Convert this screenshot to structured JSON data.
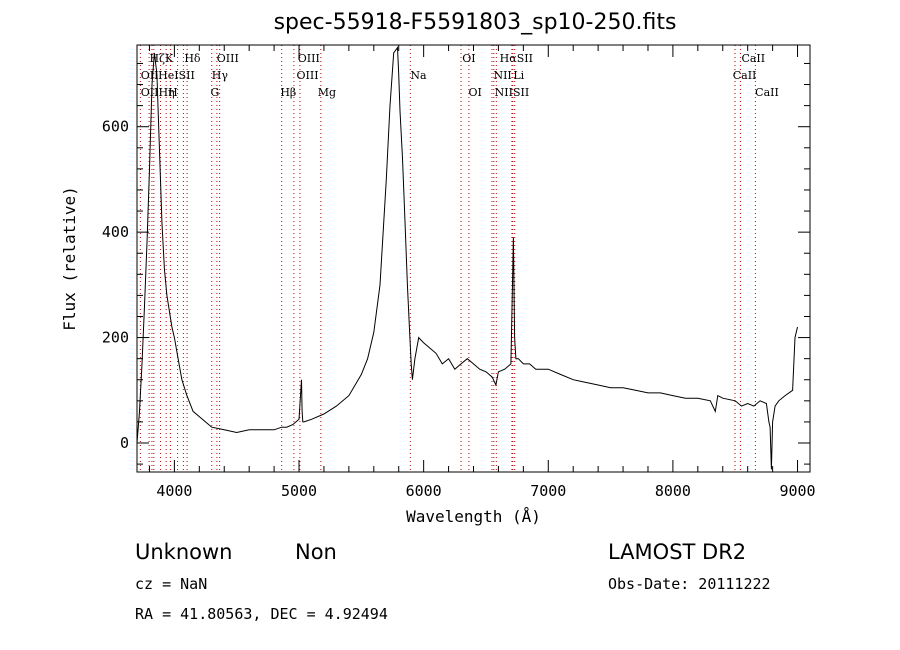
{
  "title": "spec-55918-F5591803_sp10-250.fits",
  "info": {
    "class": "Unknown",
    "subclass": "Non",
    "survey": "LAMOST DR2",
    "cz": "cz = NaN",
    "obs_date": "Obs-Date: 20111222",
    "coords": "RA =  41.80563, DEC =   4.92494"
  },
  "chart_data": {
    "type": "line",
    "xlabel": "Wavelength (Å)",
    "ylabel": "Flux (relative)",
    "xlim": [
      3700,
      9100
    ],
    "ylim": [
      -55,
      755
    ],
    "xticks": [
      4000,
      5000,
      6000,
      7000,
      8000,
      9000
    ],
    "yticks": [
      0,
      200,
      400,
      600
    ],
    "series": [
      {
        "x": [
          3700,
          3720,
          3740,
          3760,
          3780,
          3800,
          3820,
          3840,
          3860,
          3880,
          3900,
          3920,
          3940,
          3960,
          3980,
          4000,
          4030,
          4060,
          4100,
          4150,
          4200,
          4250,
          4300,
          4400,
          4500,
          4600,
          4700,
          4800,
          4860,
          4900,
          4950,
          5000,
          5020,
          5025,
          5030,
          5040,
          5100,
          5200,
          5300,
          5400,
          5500,
          5550,
          5600,
          5650,
          5700,
          5730,
          5760,
          5790,
          5800,
          5810,
          5830,
          5850,
          5870,
          5890,
          5900,
          5910,
          5930,
          5960,
          6000,
          6050,
          6100,
          6150,
          6200,
          6250,
          6300,
          6350,
          6400,
          6450,
          6500,
          6550,
          6580,
          6600,
          6650,
          6700,
          6720,
          6730,
          6740,
          6760,
          6800,
          6850,
          6900,
          7000,
          7100,
          7200,
          7300,
          7400,
          7500,
          7600,
          7700,
          7800,
          7900,
          8000,
          8100,
          8200,
          8300,
          8340,
          8360,
          8400,
          8500,
          8550,
          8600,
          8650,
          8700,
          8750,
          8770,
          8780,
          8790,
          8800,
          8820,
          8850,
          8900,
          8960,
          8980,
          9000
        ],
        "y": [
          0,
          60,
          150,
          260,
          380,
          520,
          680,
          740,
          700,
          560,
          420,
          330,
          280,
          250,
          220,
          200,
          160,
          120,
          90,
          60,
          50,
          40,
          30,
          25,
          20,
          25,
          25,
          25,
          30,
          30,
          35,
          45,
          120,
          60,
          40,
          40,
          45,
          55,
          70,
          90,
          130,
          160,
          210,
          300,
          500,
          640,
          740,
          750,
          700,
          630,
          540,
          420,
          300,
          200,
          150,
          120,
          160,
          200,
          190,
          180,
          170,
          150,
          160,
          140,
          150,
          160,
          150,
          140,
          135,
          125,
          110,
          135,
          140,
          150,
          390,
          200,
          160,
          160,
          150,
          150,
          140,
          140,
          130,
          120,
          115,
          110,
          105,
          105,
          100,
          95,
          95,
          90,
          85,
          85,
          80,
          60,
          90,
          85,
          80,
          70,
          75,
          70,
          80,
          75,
          40,
          30,
          -50,
          40,
          70,
          80,
          90,
          100,
          200,
          220
        ]
      }
    ],
    "lines": [
      {
        "wl": 3727,
        "name": "OII"
      },
      {
        "wl": 3797,
        "name": "OII"
      },
      {
        "wl": 3820,
        "name": "He"
      },
      {
        "wl": 3835,
        "name": "Hη"
      },
      {
        "wl": 3889,
        "name": "Hζ"
      },
      {
        "wl": 3934,
        "name": "K"
      },
      {
        "wl": 3968,
        "name": "H"
      },
      {
        "wl": 4026,
        "name": "HeI"
      },
      {
        "wl": 4072,
        "name": "SII"
      },
      {
        "wl": 4102,
        "name": "Hδ"
      },
      {
        "wl": 4300,
        "name": "G"
      },
      {
        "wl": 4341,
        "name": "Hγ"
      },
      {
        "wl": 4363,
        "name": "OIII"
      },
      {
        "wl": 4861,
        "name": "Hβ"
      },
      {
        "wl": 4959,
        "name": "OIII"
      },
      {
        "wl": 5007,
        "name": "OIII"
      },
      {
        "wl": 5175,
        "name": "Mg"
      },
      {
        "wl": 5893,
        "name": "Na"
      },
      {
        "wl": 6300,
        "name": "OI"
      },
      {
        "wl": 6363,
        "name": "OI"
      },
      {
        "wl": 6548,
        "name": "NII"
      },
      {
        "wl": 6563,
        "name": "Hα"
      },
      {
        "wl": 6583,
        "name": "NII"
      },
      {
        "wl": 6708,
        "name": "Li"
      },
      {
        "wl": 6716,
        "name": "SII"
      },
      {
        "wl": 6731,
        "name": "SII"
      },
      {
        "wl": 8498,
        "name": "CaII"
      },
      {
        "wl": 8542,
        "name": "CaII"
      },
      {
        "wl": 8662,
        "name": "CaII"
      }
    ],
    "line_labels": [
      {
        "wl": 3800,
        "row": 0,
        "text": "HζK"
      },
      {
        "wl": 4080,
        "row": 0,
        "text": "Hδ"
      },
      {
        "wl": 4340,
        "row": 0,
        "text": "OIII"
      },
      {
        "wl": 4990,
        "row": 0,
        "text": "OIII"
      },
      {
        "wl": 6310,
        "row": 0,
        "text": "OI"
      },
      {
        "wl": 6610,
        "row": 0,
        "text": "HαSII"
      },
      {
        "wl": 8550,
        "row": 0,
        "text": "CaII"
      },
      {
        "wl": 3730,
        "row": 1,
        "text": "OII"
      },
      {
        "wl": 3870,
        "row": 1,
        "text": "HeISII"
      },
      {
        "wl": 4300,
        "row": 1,
        "text": "Hγ"
      },
      {
        "wl": 4980,
        "row": 1,
        "text": "OIII"
      },
      {
        "wl": 5893,
        "row": 1,
        "text": "Na"
      },
      {
        "wl": 6560,
        "row": 1,
        "text": "NII"
      },
      {
        "wl": 6720,
        "row": 1,
        "text": "Li"
      },
      {
        "wl": 8480,
        "row": 1,
        "text": "CaII"
      },
      {
        "wl": 3730,
        "row": 2,
        "text": "OIIHη"
      },
      {
        "wl": 3950,
        "row": 2,
        "text": "H"
      },
      {
        "wl": 4290,
        "row": 2,
        "text": "G"
      },
      {
        "wl": 4850,
        "row": 2,
        "text": "Hβ"
      },
      {
        "wl": 5150,
        "row": 2,
        "text": "Mg"
      },
      {
        "wl": 6360,
        "row": 2,
        "text": "OI"
      },
      {
        "wl": 6570,
        "row": 2,
        "text": "NIISII"
      },
      {
        "wl": 8660,
        "row": 2,
        "text": "CaII"
      }
    ],
    "line_color": "#c00000",
    "label_color": "#000000"
  }
}
